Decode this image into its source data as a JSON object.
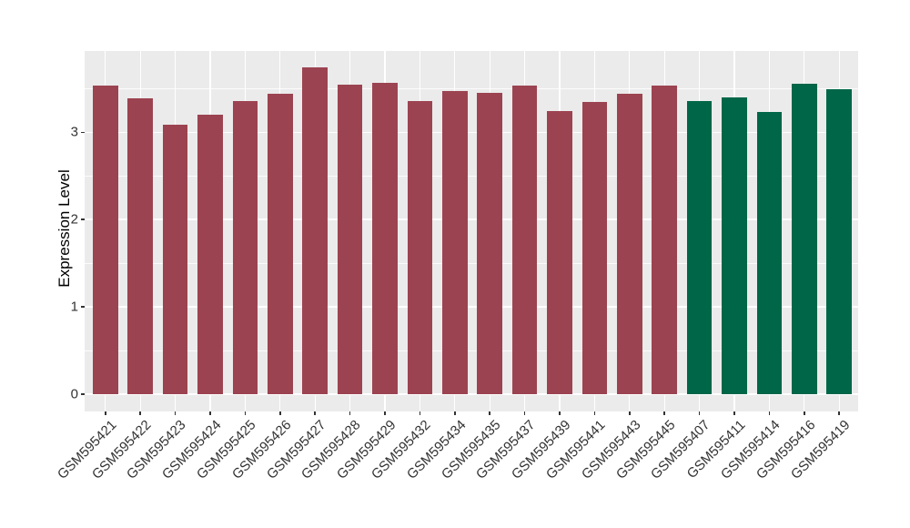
{
  "figure": {
    "background": "#FFFFFF"
  },
  "chart_data": {
    "type": "bar",
    "title": "",
    "ylabel": "Expression Level",
    "xlabel": "",
    "categories": [
      "GSM595421",
      "GSM595422",
      "GSM595423",
      "GSM595424",
      "GSM595425",
      "GSM595426",
      "GSM595427",
      "GSM595428",
      "GSM595429",
      "GSM595432",
      "GSM595434",
      "GSM595435",
      "GSM595437",
      "GSM595439",
      "GSM595441",
      "GSM595443",
      "GSM595445",
      "GSM595407",
      "GSM595411",
      "GSM595414",
      "GSM595416",
      "GSM595419"
    ],
    "values": [
      3.54,
      3.39,
      3.09,
      3.2,
      3.36,
      3.44,
      3.74,
      3.55,
      3.57,
      3.36,
      3.47,
      3.45,
      3.54,
      3.24,
      3.35,
      3.44,
      3.53,
      3.36,
      3.4,
      3.23,
      3.56,
      3.49
    ],
    "bar_groups": [
      "maroon",
      "maroon",
      "maroon",
      "maroon",
      "maroon",
      "maroon",
      "maroon",
      "maroon",
      "maroon",
      "maroon",
      "maroon",
      "maroon",
      "maroon",
      "maroon",
      "maroon",
      "maroon",
      "maroon",
      "green",
      "green",
      "green",
      "green",
      "green"
    ],
    "group_colors": {
      "maroon": "#9C4351",
      "green": "#006648"
    },
    "yticks": [
      0,
      1,
      2,
      3
    ],
    "minor_ticks": [
      0.5,
      1.5,
      2.5,
      3.5
    ],
    "ylim": [
      -0.2,
      3.93
    ],
    "grid": true,
    "legend_position": "none",
    "panel_bg": "#EBEBEB",
    "grid_color": "#FFFFFF",
    "tick_text_color": "#333333",
    "tick_mark_color": "#333333",
    "axis_title_color": "#000000"
  }
}
